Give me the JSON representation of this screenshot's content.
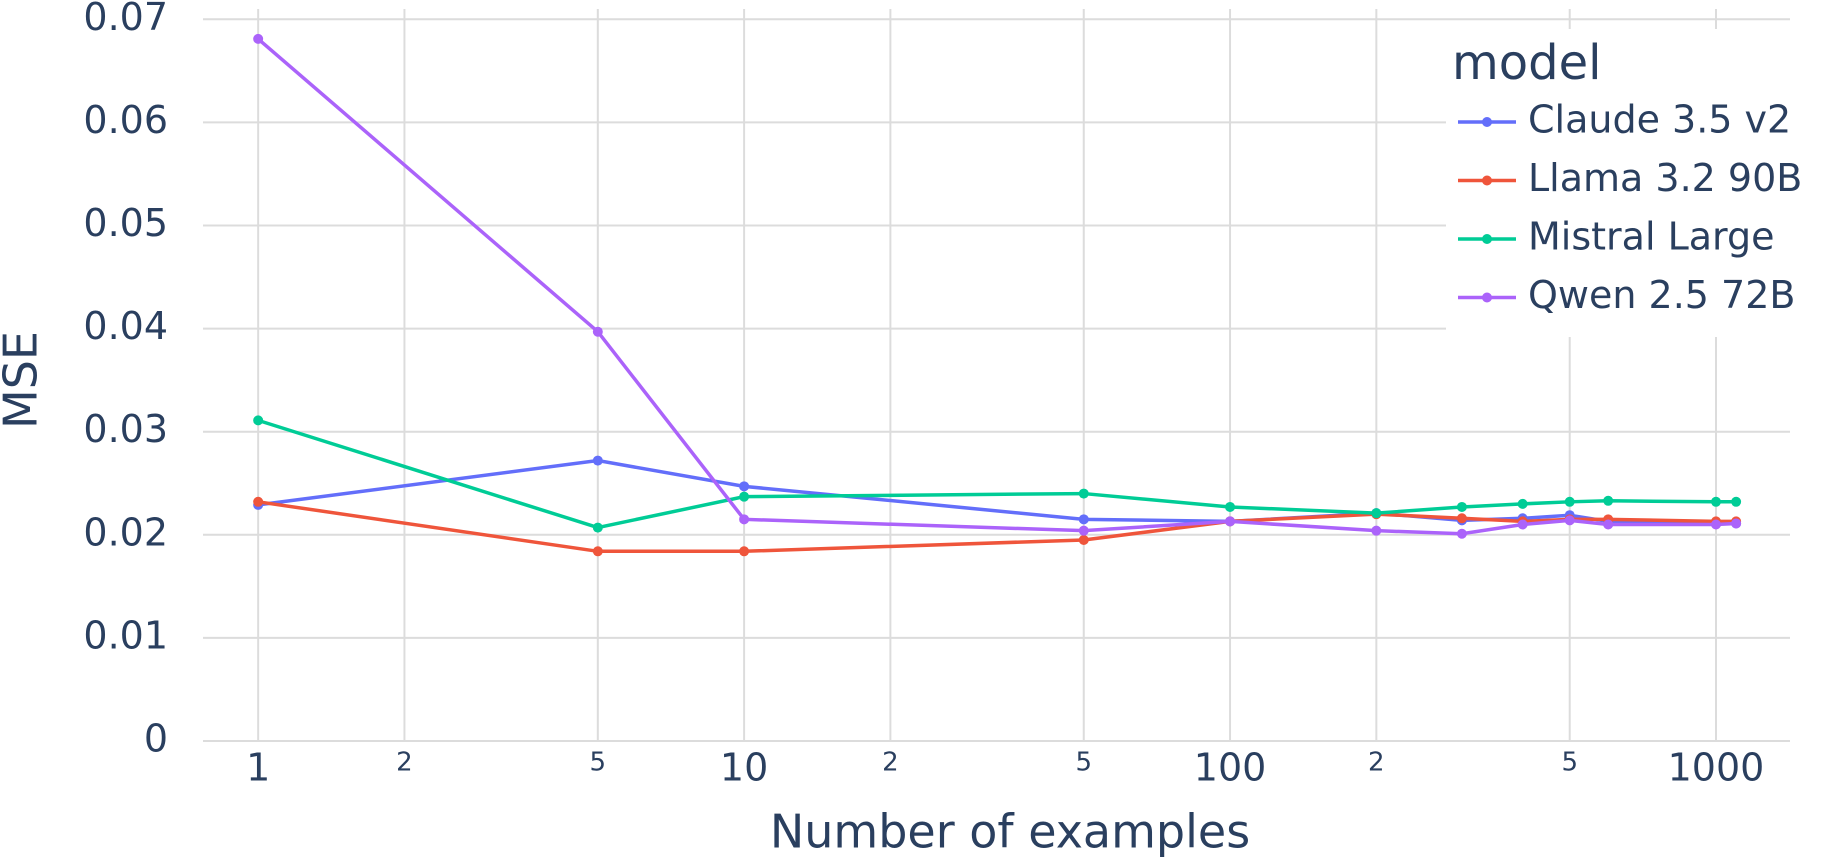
{
  "chart_data": {
    "type": "line",
    "x_label": "Number of examples",
    "y_label": "MSE",
    "legend_title": "model",
    "legend_position": "upper right",
    "x_scale": "log",
    "grid": true,
    "x": [
      1,
      5,
      10,
      50,
      100,
      200,
      300,
      400,
      500,
      600,
      1000,
      1100
    ],
    "series": [
      {
        "name": "Claude 3.5 v2",
        "color": "#636efa",
        "values": [
          0.0229,
          0.0272,
          0.0247,
          0.0215,
          0.0213,
          0.0221,
          0.0214,
          0.0216,
          0.0219,
          0.0213,
          0.0212,
          0.0211
        ]
      },
      {
        "name": "Llama 3.2 90B",
        "color": "#ef553b",
        "values": [
          0.0232,
          0.0184,
          0.0184,
          0.0195,
          0.0213,
          0.022,
          0.0216,
          0.0213,
          0.0215,
          0.0215,
          0.0213,
          0.0213
        ]
      },
      {
        "name": "Mistral Large",
        "color": "#00cc96",
        "values": [
          0.0311,
          0.0207,
          0.0237,
          0.024,
          0.0227,
          0.0221,
          0.0227,
          0.023,
          0.0232,
          0.0233,
          0.0232,
          0.0232
        ]
      },
      {
        "name": "Qwen 2.5 72B",
        "color": "#ab63fa",
        "values": [
          0.0681,
          0.0397,
          0.0215,
          0.0204,
          0.0213,
          0.0204,
          0.0201,
          0.021,
          0.0214,
          0.021,
          0.021,
          0.0211
        ]
      }
    ],
    "xlim": [
      0.77,
      1420
    ],
    "xticks": [
      1,
      2,
      5,
      10,
      {
        "value": 20,
        "label": "2"
      },
      {
        "value": 50,
        "label": "5"
      },
      100,
      {
        "value": 200,
        "label": "2"
      },
      {
        "value": 500,
        "label": "5"
      },
      1000
    ],
    "ylim": [
      0,
      0.071
    ],
    "yticks": [
      0,
      0.01,
      0.02,
      0.03,
      0.04,
      0.05,
      0.06,
      0.07
    ]
  }
}
